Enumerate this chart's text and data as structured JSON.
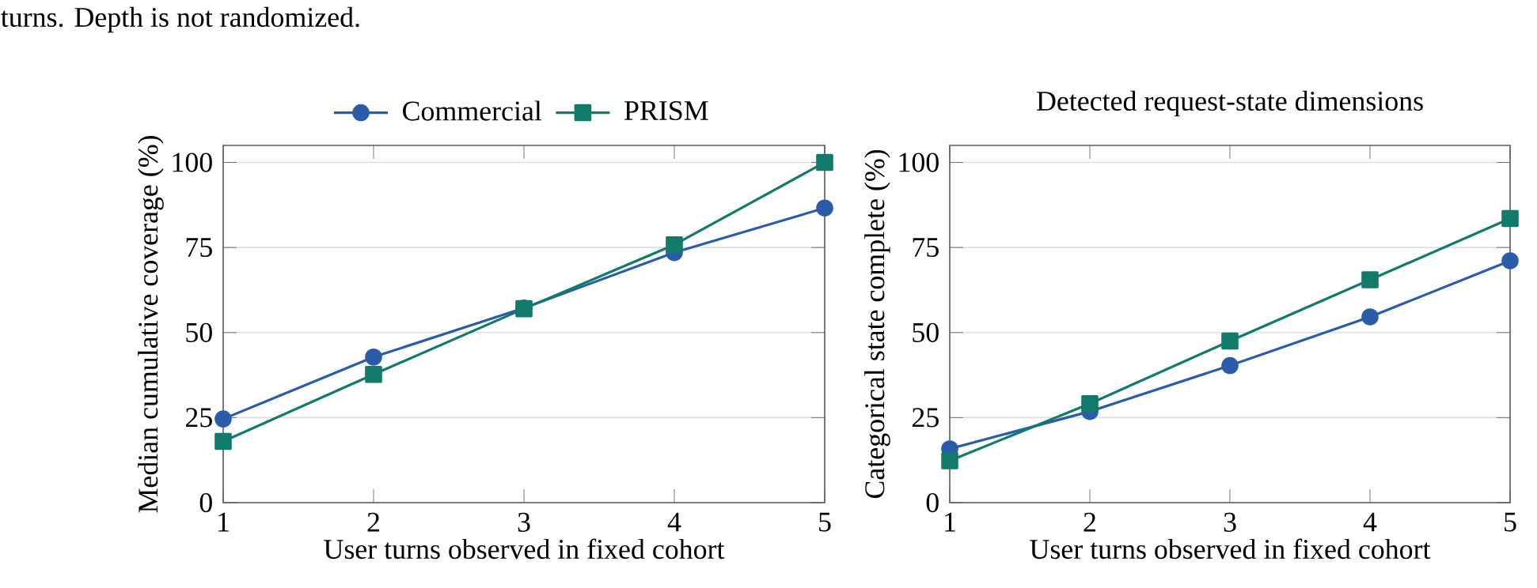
{
  "chart_data": [
    {
      "type": "line",
      "annotations": [
        "turns. Depth is not randomized."
      ],
      "xlabel": "User turns observed in fixed cohort",
      "ylabel": "Median cumulative coverage (%)",
      "x": [
        1,
        2,
        3,
        4,
        5
      ],
      "xlim": [
        1,
        5
      ],
      "ylim": [
        0,
        105
      ],
      "xticks": [
        1,
        2,
        3,
        4,
        5
      ],
      "yticks": [
        0,
        25,
        50,
        75,
        100
      ],
      "grid": "y",
      "legend": "top",
      "series": [
        {
          "name": "Commercial",
          "color": "#2a5caa",
          "marker": "circle",
          "values": [
            24.6,
            42.8,
            57.2,
            73.5,
            86.6
          ]
        },
        {
          "name": "PRISM",
          "color": "#127a6a",
          "marker": "square",
          "values": [
            18,
            37.7,
            57,
            75.8,
            100
          ]
        }
      ]
    },
    {
      "type": "line",
      "title": "Detected request-state dimensions",
      "xlabel": "User turns observed in fixed cohort",
      "ylabel": "Categorical state complete (%)",
      "x": [
        1,
        2,
        3,
        4,
        5
      ],
      "xlim": [
        1,
        5
      ],
      "ylim": [
        0,
        105
      ],
      "xticks": [
        1,
        2,
        3,
        4,
        5
      ],
      "yticks": [
        0,
        25,
        50,
        75,
        100
      ],
      "grid": "y",
      "series": [
        {
          "color": "#2a5caa",
          "marker": "circle",
          "values": [
            15.8,
            26.8,
            40.3,
            54.6,
            71.1
          ]
        },
        {
          "color": "#127a6a",
          "marker": "square",
          "values": [
            12.3,
            29.1,
            47.5,
            65.5,
            83.5
          ]
        }
      ]
    }
  ]
}
